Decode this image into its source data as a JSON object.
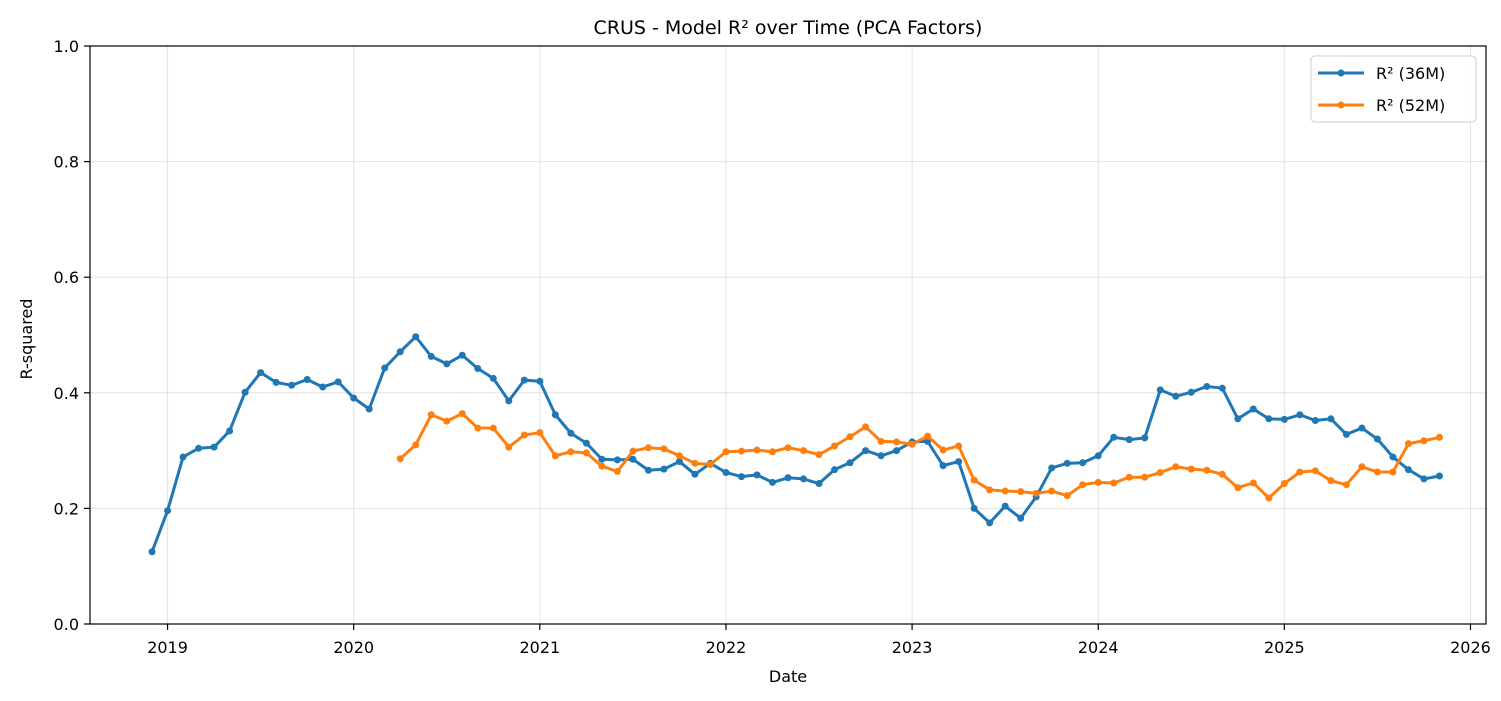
{
  "chart_data": {
    "type": "line",
    "title": "CRUS - Model R² over Time (PCA Factors)",
    "xlabel": "Date",
    "ylabel": "R-squared",
    "x_tick_labels": [
      "2019",
      "2020",
      "2021",
      "2022",
      "2023",
      "2024",
      "2025",
      "2026"
    ],
    "y_tick_labels": [
      "0.0",
      "0.2",
      "0.4",
      "0.6",
      "0.8",
      "1.0"
    ],
    "xlim": [
      "2018-08",
      "2026-02"
    ],
    "ylim": [
      0,
      1
    ],
    "grid": true,
    "legend_position": "top-right",
    "x": [
      "2018-12",
      "2019-01",
      "2019-02",
      "2019-03",
      "2019-04",
      "2019-05",
      "2019-06",
      "2019-07",
      "2019-08",
      "2019-09",
      "2019-10",
      "2019-11",
      "2019-12",
      "2020-01",
      "2020-02",
      "2020-03",
      "2020-04",
      "2020-05",
      "2020-06",
      "2020-07",
      "2020-08",
      "2020-09",
      "2020-10",
      "2020-11",
      "2020-12",
      "2021-01",
      "2021-02",
      "2021-03",
      "2021-04",
      "2021-05",
      "2021-06",
      "2021-07",
      "2021-08",
      "2021-09",
      "2021-10",
      "2021-11",
      "2021-12",
      "2022-01",
      "2022-02",
      "2022-03",
      "2022-04",
      "2022-05",
      "2022-06",
      "2022-07",
      "2022-08",
      "2022-09",
      "2022-10",
      "2022-11",
      "2022-12",
      "2023-01",
      "2023-02",
      "2023-03",
      "2023-04",
      "2023-05",
      "2023-06",
      "2023-07",
      "2023-08",
      "2023-09",
      "2023-10",
      "2023-11",
      "2023-12",
      "2024-01",
      "2024-02",
      "2024-03",
      "2024-04",
      "2024-05",
      "2024-06",
      "2024-07",
      "2024-08",
      "2024-09",
      "2024-10",
      "2024-11",
      "2024-12",
      "2025-01",
      "2025-02",
      "2025-03",
      "2025-04",
      "2025-05",
      "2025-06",
      "2025-07",
      "2025-08",
      "2025-09",
      "2025-10",
      "2025-11"
    ],
    "series": [
      {
        "name": "R² (36M)",
        "color": "#1f77b4",
        "values": [
          0.125,
          0.196,
          0.289,
          0.304,
          0.306,
          0.334,
          0.401,
          0.435,
          0.418,
          0.413,
          0.423,
          0.41,
          0.419,
          0.391,
          0.372,
          0.443,
          0.471,
          0.497,
          0.463,
          0.45,
          0.465,
          0.442,
          0.425,
          0.386,
          0.422,
          0.42,
          0.362,
          0.33,
          0.313,
          0.285,
          0.284,
          0.285,
          0.266,
          0.268,
          0.281,
          0.259,
          0.278,
          0.262,
          0.255,
          0.258,
          0.245,
          0.253,
          0.251,
          0.243,
          0.267,
          0.279,
          0.3,
          0.291,
          0.3,
          0.315,
          0.316,
          0.274,
          0.281,
          0.2,
          0.175,
          0.204,
          0.183,
          0.22,
          0.27,
          0.278,
          0.279,
          0.291,
          0.323,
          0.319,
          0.322,
          0.405,
          0.394,
          0.401,
          0.411,
          0.408,
          0.355,
          0.372,
          0.355,
          0.354,
          0.362,
          0.352,
          0.355,
          0.328,
          0.339,
          0.32,
          0.289,
          0.267,
          0.251,
          0.256
        ]
      },
      {
        "name": "R² (52M)",
        "color": "#ff7f0e",
        "values": [
          null,
          null,
          null,
          null,
          null,
          null,
          null,
          null,
          null,
          null,
          null,
          null,
          null,
          null,
          null,
          null,
          0.286,
          0.31,
          0.362,
          0.351,
          0.364,
          0.339,
          0.339,
          0.306,
          0.327,
          0.331,
          0.291,
          0.298,
          0.296,
          0.273,
          0.264,
          0.299,
          0.305,
          0.303,
          0.291,
          0.278,
          0.276,
          0.298,
          0.299,
          0.301,
          0.298,
          0.305,
          0.3,
          0.293,
          0.308,
          0.324,
          0.341,
          0.316,
          0.315,
          0.311,
          0.325,
          0.301,
          0.308,
          0.249,
          0.232,
          0.23,
          0.229,
          0.226,
          0.23,
          0.222,
          0.241,
          0.245,
          0.244,
          0.254,
          0.254,
          0.262,
          0.272,
          0.268,
          0.266,
          0.259,
          0.236,
          0.244,
          0.218,
          0.243,
          0.263,
          0.265,
          0.248,
          0.241,
          0.272,
          0.263,
          0.263,
          0.312,
          0.317,
          0.323
        ]
      }
    ]
  }
}
